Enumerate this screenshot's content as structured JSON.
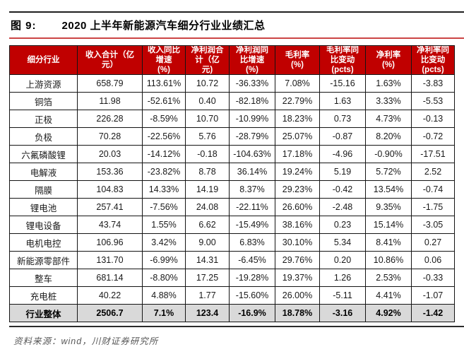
{
  "figure": {
    "label": "图 9:",
    "title": "2020 上半年新能源汽车细分行业业绩汇总"
  },
  "table": {
    "columns": [
      "细分行业",
      "收入合计（亿\n元）",
      "收入同比\n增速\n(%)",
      "净利润合\n计（亿\n元)",
      "净利润同\n比增速\n(%)",
      "毛利率\n(%)",
      "毛利率同\n比变动\n(pcts)",
      "净利率\n(%)",
      "净利率同\n比变动\n(pcts)"
    ],
    "rows": [
      [
        "上游资源",
        "658.79",
        "113.61%",
        "10.72",
        "-36.33%",
        "7.08%",
        "-15.16",
        "1.63%",
        "-3.83"
      ],
      [
        "铜箔",
        "11.98",
        "-52.61%",
        "0.40",
        "-82.18%",
        "22.79%",
        "1.63",
        "3.33%",
        "-5.53"
      ],
      [
        "正极",
        "226.28",
        "-8.59%",
        "10.70",
        "-10.99%",
        "18.23%",
        "0.73",
        "4.73%",
        "-0.13"
      ],
      [
        "负极",
        "70.28",
        "-22.56%",
        "5.76",
        "-28.79%",
        "25.07%",
        "-0.87",
        "8.20%",
        "-0.72"
      ],
      [
        "六氟磷酸锂",
        "20.03",
        "-14.12%",
        "-0.18",
        "-104.63%",
        "17.18%",
        "-4.96",
        "-0.90%",
        "-17.51"
      ],
      [
        "电解液",
        "153.36",
        "-23.82%",
        "8.78",
        "36.14%",
        "19.24%",
        "5.19",
        "5.72%",
        "2.52"
      ],
      [
        "隔膜",
        "104.83",
        "14.33%",
        "14.19",
        "8.37%",
        "29.23%",
        "-0.42",
        "13.54%",
        "-0.74"
      ],
      [
        "锂电池",
        "257.41",
        "-7.56%",
        "24.08",
        "-22.11%",
        "26.60%",
        "-2.48",
        "9.35%",
        "-1.75"
      ],
      [
        "锂电设备",
        "43.74",
        "1.55%",
        "6.62",
        "-15.49%",
        "38.16%",
        "0.23",
        "15.14%",
        "-3.05"
      ],
      [
        "电机电控",
        "106.96",
        "3.42%",
        "9.00",
        "6.83%",
        "30.10%",
        "5.34",
        "8.41%",
        "0.27"
      ],
      [
        "新能源零部件",
        "131.70",
        "-6.99%",
        "14.31",
        "-6.45%",
        "29.76%",
        "0.20",
        "10.86%",
        "0.06"
      ],
      [
        "整车",
        "681.14",
        "-8.80%",
        "17.25",
        "-19.28%",
        "19.37%",
        "1.26",
        "2.53%",
        "-0.33"
      ],
      [
        "充电桩",
        "40.22",
        "4.88%",
        "1.77",
        "-15.60%",
        "26.00%",
        "-5.11",
        "4.41%",
        "-1.07"
      ]
    ],
    "total_row": [
      "行业整体",
      "2506.7",
      "7.1%",
      "123.4",
      "-16.9%",
      "18.78%",
      "-3.16",
      "4.92%",
      "-1.42"
    ]
  },
  "footer": {
    "source": "资料来源：wind，川财证券研究所"
  },
  "colors": {
    "header_bg": "#c00000",
    "header_text": "#ffffff",
    "total_row_bg": "#d9d9d9",
    "title_rule": "#cc4444",
    "top_rule": "#1f1f1f",
    "bottom_rule": "#2b2b2b",
    "border": "#141414",
    "source_text": "#595959"
  }
}
